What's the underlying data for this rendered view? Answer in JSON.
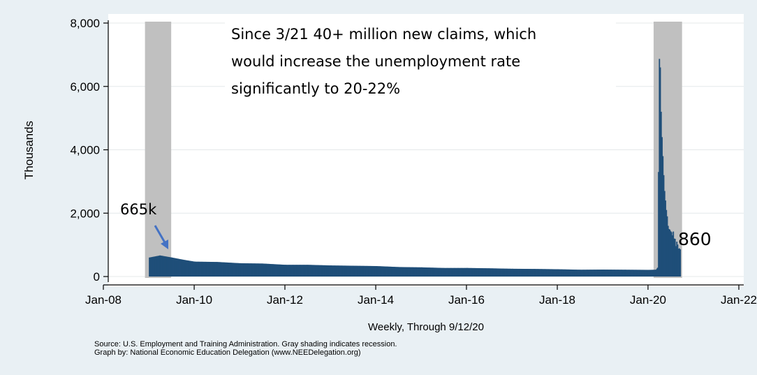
{
  "chart_data": {
    "type": "bar",
    "title": "",
    "xlabel": "Weekly, Through 9/12/20",
    "ylabel": "Thousands",
    "ylim": [
      0,
      8000
    ],
    "xlim": [
      "2008-01-01",
      "2022-01-01"
    ],
    "y_ticks": [
      0,
      2000,
      4000,
      6000,
      8000
    ],
    "y_tick_labels": [
      "0",
      "2,000",
      "4,000",
      "6,000",
      "8,000"
    ],
    "x_ticks": [
      "2008-01-01",
      "2010-01-01",
      "2012-01-01",
      "2014-01-01",
      "2016-01-01",
      "2018-01-01",
      "2020-01-01",
      "2022-01-01"
    ],
    "x_tick_labels": [
      "Jan-08",
      "Jan-10",
      "Jan-12",
      "Jan-14",
      "Jan-16",
      "Jan-18",
      "Jan-20",
      "Jan-22"
    ],
    "grid": true,
    "recessions": [
      {
        "start": "2008-12-01",
        "end": "2009-06-30"
      },
      {
        "start": "2020-02-15",
        "end": "2020-10-01"
      }
    ],
    "series": [
      {
        "color": "#1f4e79",
        "points": [
          [
            "2009-01-01",
            600
          ],
          [
            "2009-03-28",
            665
          ],
          [
            "2009-07-01",
            600
          ],
          [
            "2009-10-01",
            530
          ],
          [
            "2010-01-01",
            470
          ],
          [
            "2010-07-01",
            460
          ],
          [
            "2011-01-01",
            420
          ],
          [
            "2011-07-01",
            410
          ],
          [
            "2012-01-01",
            370
          ],
          [
            "2012-07-01",
            370
          ],
          [
            "2013-01-01",
            350
          ],
          [
            "2013-07-01",
            340
          ],
          [
            "2014-01-01",
            330
          ],
          [
            "2014-07-01",
            300
          ],
          [
            "2015-01-01",
            290
          ],
          [
            "2015-07-01",
            270
          ],
          [
            "2016-01-01",
            270
          ],
          [
            "2016-07-01",
            260
          ],
          [
            "2017-01-01",
            245
          ],
          [
            "2017-07-01",
            240
          ],
          [
            "2018-01-01",
            230
          ],
          [
            "2018-07-01",
            215
          ],
          [
            "2019-01-01",
            220
          ],
          [
            "2019-07-01",
            215
          ],
          [
            "2020-01-01",
            210
          ],
          [
            "2020-03-01",
            215
          ],
          [
            "2020-03-14",
            280
          ],
          [
            "2020-03-21",
            3300
          ],
          [
            "2020-03-28",
            6870
          ],
          [
            "2020-04-04",
            6600
          ],
          [
            "2020-04-11",
            5200
          ],
          [
            "2020-04-18",
            4400
          ],
          [
            "2020-04-25",
            3800
          ],
          [
            "2020-05-02",
            3200
          ],
          [
            "2020-05-09",
            2700
          ],
          [
            "2020-05-16",
            2400
          ],
          [
            "2020-05-23",
            2100
          ],
          [
            "2020-05-30",
            1900
          ],
          [
            "2020-06-06",
            1600
          ],
          [
            "2020-06-13",
            1500
          ],
          [
            "2020-06-20",
            1480
          ],
          [
            "2020-06-27",
            1430
          ],
          [
            "2020-07-04",
            1400
          ],
          [
            "2020-07-11",
            1300
          ],
          [
            "2020-07-18",
            1420
          ],
          [
            "2020-07-25",
            1200
          ],
          [
            "2020-08-01",
            1190
          ],
          [
            "2020-08-08",
            960
          ],
          [
            "2020-08-15",
            1100
          ],
          [
            "2020-08-22",
            1010
          ],
          [
            "2020-08-29",
            880
          ],
          [
            "2020-09-05",
            890
          ],
          [
            "2020-09-12",
            860
          ]
        ]
      }
    ],
    "annotations": [
      {
        "text": "665k",
        "x": "2009-03-28",
        "y": 665,
        "arrow": true
      },
      {
        "text": "860",
        "x": "2020-09-12",
        "y": 860
      }
    ]
  },
  "annotation_box": {
    "lines": [
      "Since 3/21 40+ million new claims, which",
      "would increase the unemployment rate",
      "significantly to 20-22%"
    ]
  },
  "source_lines": [
    "Source:  U.S. Employment and Training Administration. Gray shading indicates recession.",
    "Graph by: National Economic Education Delegation (www.NEEDelegation.org)"
  ],
  "colors": {
    "background": "#e9f0f4",
    "plot_background": "#ffffff",
    "recession": "#c0c0c0",
    "arrow": "#4472c4"
  }
}
